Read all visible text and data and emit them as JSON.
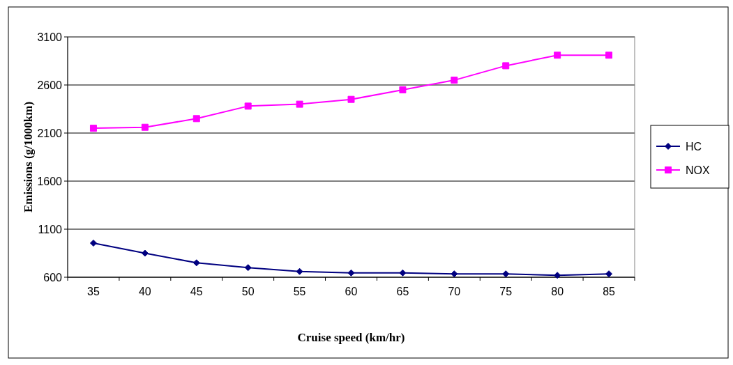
{
  "chart_data": {
    "type": "line",
    "xlabel": "Cruise speed (km/hr)",
    "ylabel": "Emissions (g/1000km)",
    "categories": [
      "35",
      "40",
      "45",
      "50",
      "55",
      "60",
      "65",
      "70",
      "75",
      "80",
      "85"
    ],
    "ylim": [
      600,
      3100
    ],
    "yticks": [
      600,
      1100,
      1600,
      2100,
      2600,
      3100
    ],
    "grid": "y",
    "legend": "right",
    "series": [
      {
        "name": "HC",
        "color": "#000080",
        "marker": "diamond",
        "values": [
          955,
          850,
          750,
          700,
          660,
          645,
          645,
          635,
          635,
          620,
          635
        ]
      },
      {
        "name": "NOX",
        "color": "#ff00ff",
        "marker": "square",
        "values": [
          2150,
          2160,
          2250,
          2380,
          2400,
          2450,
          2550,
          2650,
          2800,
          2910,
          2910
        ]
      }
    ]
  }
}
